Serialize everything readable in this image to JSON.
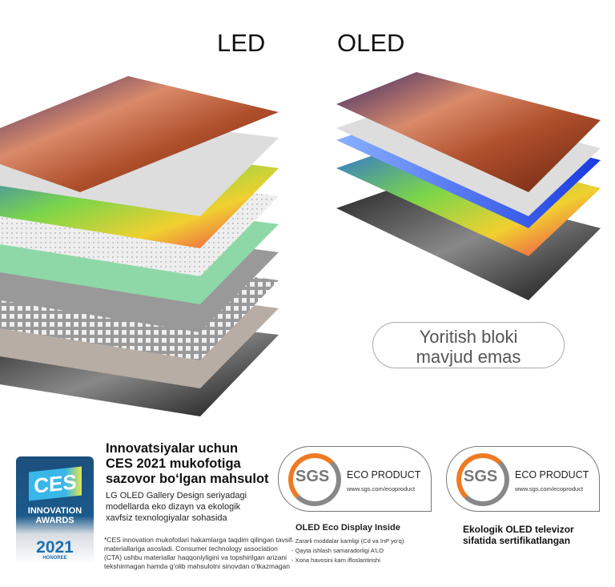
{
  "titles": {
    "led": "LED",
    "oled": "OLED"
  },
  "badge": {
    "text": "Yoritish bloki",
    "text2": "mavjud emas"
  },
  "ces": {
    "logo": "CES",
    "line1": "INNOVATION",
    "line2": "AWARDS",
    "year": "2021",
    "honoree": "HONOREE"
  },
  "award": {
    "heading": [
      "Innovatsiyalar uchun",
      "CES 2021 mukofotiga",
      "sazovor bo‘lgan mahsulot"
    ],
    "description": [
      "LG OLED Gallery Design seriyadagi",
      "modellarda eko dizayn va ekologik",
      "xavfsiz texnologiyalar sohasida"
    ],
    "footnote": "*CES innovation mukofotlari hakamlarga taqdim qilingan tavsif materiallariga asosladi. Consumer technology association (CTA) ushbu materiallar haqqoniyligini va topshirilgan arizani tekshirmagan hamda g‘olib mahsulotni sinovdan o‘tkazmagan"
  },
  "sgs1": {
    "code": "SGS",
    "label": "ECO PRODUCT",
    "url": "www.sgs.com/ecoproduct",
    "caption": "OLED Eco Display Inside",
    "items": [
      "- Zararli moddalar kamligi (Cd va InP yo‘q)",
      "- Qayta ishlash samaradorligi A’LO",
      "- Xona havosini kam ifloslantirishi"
    ]
  },
  "sgs2": {
    "code": "SGS",
    "label": "ECO PRODUCT",
    "url": "www.sgs.com/ecoproduct",
    "caption": [
      "Ekologik OLED televizor",
      "sifatida sertifikatlangan"
    ]
  }
}
